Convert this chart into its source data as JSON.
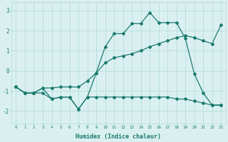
{
  "xlabel": "Humidex (Indice chaleur)",
  "bg_color": "#daf0f0",
  "line_color": "#1a7a6e",
  "grid_color": "#aed8d8",
  "xlim": [
    -0.5,
    23.5
  ],
  "ylim": [
    -2.6,
    3.4
  ],
  "xticks": [
    0,
    1,
    2,
    3,
    4,
    5,
    6,
    7,
    8,
    9,
    10,
    11,
    12,
    13,
    14,
    15,
    16,
    17,
    18,
    19,
    20,
    21,
    22,
    23
  ],
  "yticks": [
    -2,
    -1,
    0,
    1,
    2,
    3
  ],
  "line1_x": [
    0,
    1,
    2,
    3,
    4,
    5,
    6,
    7,
    8,
    9,
    10,
    11,
    12,
    13,
    14,
    15,
    16,
    17,
    18,
    19,
    20,
    21,
    22,
    23
  ],
  "line1_y": [
    -0.8,
    -1.1,
    -1.1,
    -1.1,
    -1.4,
    -1.3,
    -1.3,
    -1.9,
    -1.3,
    -1.3,
    -1.3,
    -1.3,
    -1.3,
    -1.3,
    -1.3,
    -1.3,
    -1.3,
    -1.3,
    -1.4,
    -1.4,
    -1.5,
    -1.6,
    -1.7,
    -1.7
  ],
  "line2_x": [
    0,
    1,
    2,
    3,
    4,
    5,
    6,
    7,
    8,
    9,
    10,
    11,
    12,
    13,
    14,
    15,
    16,
    17,
    18,
    19,
    20,
    21,
    22,
    23
  ],
  "line2_y": [
    -0.8,
    -1.1,
    -1.1,
    -0.85,
    -0.85,
    -0.8,
    -0.8,
    -0.8,
    -0.5,
    -0.1,
    0.4,
    0.65,
    0.75,
    0.85,
    1.0,
    1.2,
    1.35,
    1.5,
    1.65,
    1.75,
    1.65,
    1.5,
    1.35,
    2.3
  ],
  "line3_x": [
    0,
    1,
    2,
    3,
    4,
    5,
    6,
    7,
    8,
    9,
    10,
    11,
    12,
    13,
    14,
    15,
    16,
    17,
    18,
    19,
    20,
    21,
    22,
    23
  ],
  "line3_y": [
    -0.8,
    -1.1,
    -1.1,
    -0.85,
    -1.4,
    -1.3,
    -1.3,
    -1.9,
    -1.3,
    -0.1,
    1.2,
    1.85,
    1.85,
    2.35,
    2.35,
    2.9,
    2.4,
    2.4,
    2.4,
    1.6,
    -0.15,
    -1.1,
    -1.7,
    -1.7
  ]
}
